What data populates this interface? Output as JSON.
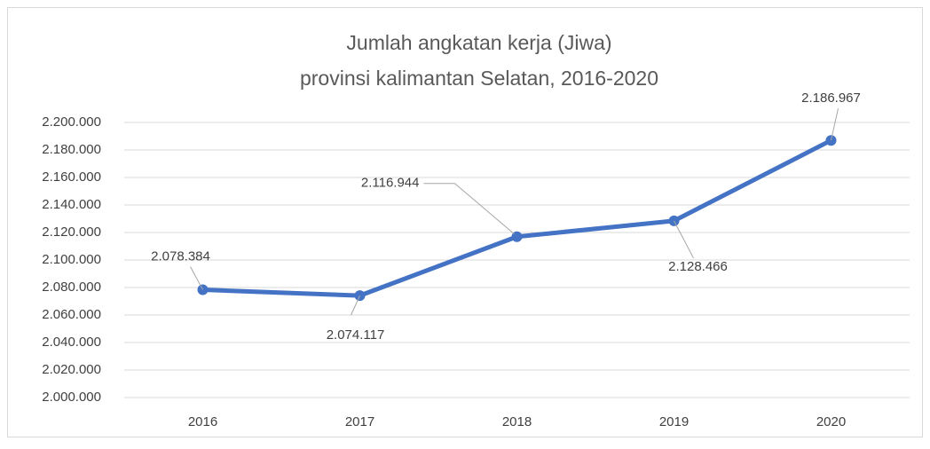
{
  "chart_data": {
    "type": "line",
    "title": [
      "Jumlah angkatan kerja (Jiwa)",
      "provinsi kalimantan Selatan, 2016-2020"
    ],
    "categories": [
      "2016",
      "2017",
      "2018",
      "2019",
      "2020"
    ],
    "series": [
      {
        "name": "Jumlah angkatan kerja",
        "color": "#4472c4",
        "values": [
          2078384,
          2074117,
          2116944,
          2128466,
          2186967
        ],
        "value_labels": [
          "2.078.384",
          "2.074.117",
          "2.116.944",
          "2.128.466",
          "2.186.967"
        ]
      }
    ],
    "ylim": [
      2000000,
      2200000
    ],
    "yticks": [
      {
        "value": 2000000,
        "label": "2.000.000"
      },
      {
        "value": 2020000,
        "label": "2.020.000"
      },
      {
        "value": 2040000,
        "label": "2.040.000"
      },
      {
        "value": 2060000,
        "label": "2.060.000"
      },
      {
        "value": 2080000,
        "label": "2.080.000"
      },
      {
        "value": 2100000,
        "label": "2.100.000"
      },
      {
        "value": 2120000,
        "label": "2.120.000"
      },
      {
        "value": 2140000,
        "label": "2.140.000"
      },
      {
        "value": 2160000,
        "label": "2.160.000"
      },
      {
        "value": 2180000,
        "label": "2.180.000"
      },
      {
        "value": 2200000,
        "label": "2.200.000"
      }
    ],
    "grid": true
  }
}
